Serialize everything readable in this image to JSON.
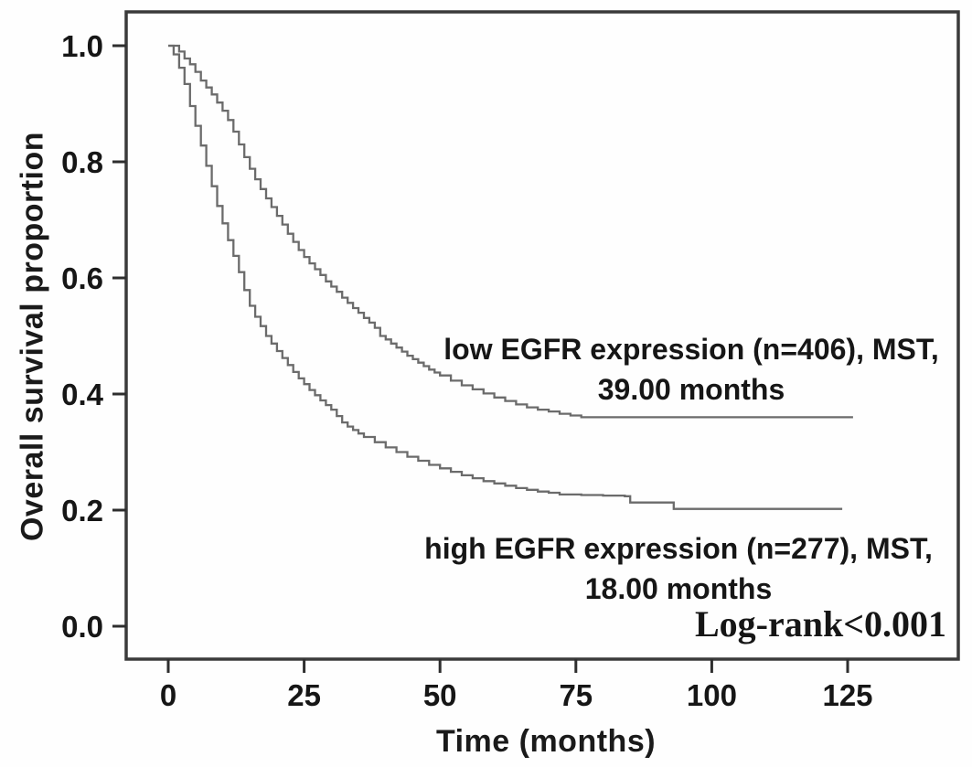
{
  "chart_data": {
    "type": "line",
    "subtype": "kaplan-meier-step",
    "title": "",
    "xlabel": "Time (months)",
    "ylabel": "Overall survival proportion",
    "xlim": [
      0,
      125
    ],
    "ylim": [
      0.0,
      1.0
    ],
    "grid": false,
    "legend_position": "inline-annotations",
    "xticks": {
      "values": [
        0,
        25,
        50,
        75,
        100,
        125
      ],
      "labels": [
        "0",
        "25",
        "50",
        "75",
        "100",
        "125"
      ]
    },
    "yticks": {
      "values": [
        0.0,
        0.2,
        0.4,
        0.6,
        0.8,
        1.0
      ],
      "labels": [
        "0.0",
        "0.2",
        "0.4",
        "0.6",
        "0.8",
        "1.0"
      ]
    },
    "colors": {
      "curve": "#6b6b6b",
      "frame": "#3a3a3a",
      "tick": "#2e2e2e",
      "text": "#161616",
      "background": "#fefefe"
    },
    "annotations": {
      "log_rank": "Log-rank<0.001"
    },
    "series": [
      {
        "name": "low EGFR expression",
        "n": 406,
        "mst_months": "39.00",
        "label_line1": "low EGFR expression (n=406), MST,",
        "label_line2": "39.00 months",
        "color": "#6b6b6b",
        "points": [
          [
            0,
            1.0
          ],
          [
            2,
            0.99
          ],
          [
            3,
            0.978
          ],
          [
            4,
            0.968
          ],
          [
            5,
            0.955
          ],
          [
            6,
            0.94
          ],
          [
            7,
            0.928
          ],
          [
            8,
            0.916
          ],
          [
            9,
            0.902
          ],
          [
            10,
            0.888
          ],
          [
            11,
            0.872
          ],
          [
            12,
            0.852
          ],
          [
            13,
            0.83
          ],
          [
            14,
            0.808
          ],
          [
            15,
            0.788
          ],
          [
            16,
            0.77
          ],
          [
            17,
            0.753
          ],
          [
            18,
            0.737
          ],
          [
            19,
            0.722
          ],
          [
            20,
            0.707
          ],
          [
            21,
            0.692
          ],
          [
            22,
            0.676
          ],
          [
            23,
            0.662
          ],
          [
            24,
            0.648
          ],
          [
            25,
            0.636
          ],
          [
            26,
            0.625
          ],
          [
            27,
            0.615
          ],
          [
            28,
            0.605
          ],
          [
            29,
            0.594
          ],
          [
            30,
            0.585
          ],
          [
            31,
            0.576
          ],
          [
            32,
            0.566
          ],
          [
            33,
            0.557
          ],
          [
            34,
            0.548
          ],
          [
            35,
            0.54
          ],
          [
            36,
            0.531
          ],
          [
            37,
            0.523
          ],
          [
            38,
            0.514
          ],
          [
            39,
            0.5
          ],
          [
            40,
            0.494
          ],
          [
            41,
            0.487
          ],
          [
            42,
            0.48
          ],
          [
            43,
            0.473
          ],
          [
            44,
            0.466
          ],
          [
            45,
            0.46
          ],
          [
            46,
            0.454
          ],
          [
            47,
            0.448
          ],
          [
            48,
            0.442
          ],
          [
            49,
            0.437
          ],
          [
            50,
            0.432
          ],
          [
            52,
            0.423
          ],
          [
            54,
            0.415
          ],
          [
            56,
            0.408
          ],
          [
            58,
            0.401
          ],
          [
            60,
            0.394
          ],
          [
            62,
            0.388
          ],
          [
            64,
            0.382
          ],
          [
            66,
            0.377
          ],
          [
            68,
            0.373
          ],
          [
            70,
            0.37
          ],
          [
            72,
            0.366
          ],
          [
            74,
            0.363
          ],
          [
            76,
            0.36
          ],
          [
            126,
            0.36
          ]
        ]
      },
      {
        "name": "high EGFR expression",
        "n": 277,
        "mst_months": "18.00",
        "label_line1": "high EGFR expression (n=277), MST,",
        "label_line2": "18.00 months",
        "color": "#6b6b6b",
        "points": [
          [
            0,
            1.0
          ],
          [
            1,
            0.985
          ],
          [
            2,
            0.962
          ],
          [
            3,
            0.934
          ],
          [
            4,
            0.896
          ],
          [
            5,
            0.862
          ],
          [
            6,
            0.828
          ],
          [
            7,
            0.793
          ],
          [
            8,
            0.758
          ],
          [
            9,
            0.724
          ],
          [
            10,
            0.694
          ],
          [
            11,
            0.665
          ],
          [
            12,
            0.638
          ],
          [
            13,
            0.61
          ],
          [
            14,
            0.579
          ],
          [
            15,
            0.552
          ],
          [
            16,
            0.533
          ],
          [
            17,
            0.517
          ],
          [
            18,
            0.5
          ],
          [
            19,
            0.487
          ],
          [
            20,
            0.474
          ],
          [
            21,
            0.462
          ],
          [
            22,
            0.45
          ],
          [
            23,
            0.438
          ],
          [
            24,
            0.427
          ],
          [
            25,
            0.417
          ],
          [
            26,
            0.407
          ],
          [
            27,
            0.398
          ],
          [
            28,
            0.389
          ],
          [
            29,
            0.381
          ],
          [
            30,
            0.373
          ],
          [
            31,
            0.362
          ],
          [
            32,
            0.351
          ],
          [
            33,
            0.344
          ],
          [
            34,
            0.338
          ],
          [
            35,
            0.332
          ],
          [
            36,
            0.326
          ],
          [
            38,
            0.317
          ],
          [
            40,
            0.308
          ],
          [
            42,
            0.3
          ],
          [
            44,
            0.292
          ],
          [
            46,
            0.285
          ],
          [
            48,
            0.278
          ],
          [
            50,
            0.272
          ],
          [
            52,
            0.266
          ],
          [
            54,
            0.26
          ],
          [
            56,
            0.255
          ],
          [
            58,
            0.25
          ],
          [
            60,
            0.246
          ],
          [
            62,
            0.242
          ],
          [
            64,
            0.238
          ],
          [
            66,
            0.235
          ],
          [
            68,
            0.232
          ],
          [
            70,
            0.23
          ],
          [
            72,
            0.227
          ],
          [
            76,
            0.226
          ],
          [
            80,
            0.225
          ],
          [
            84,
            0.224
          ],
          [
            85,
            0.213
          ],
          [
            92,
            0.213
          ],
          [
            93,
            0.202
          ],
          [
            124,
            0.202
          ]
        ]
      }
    ]
  }
}
